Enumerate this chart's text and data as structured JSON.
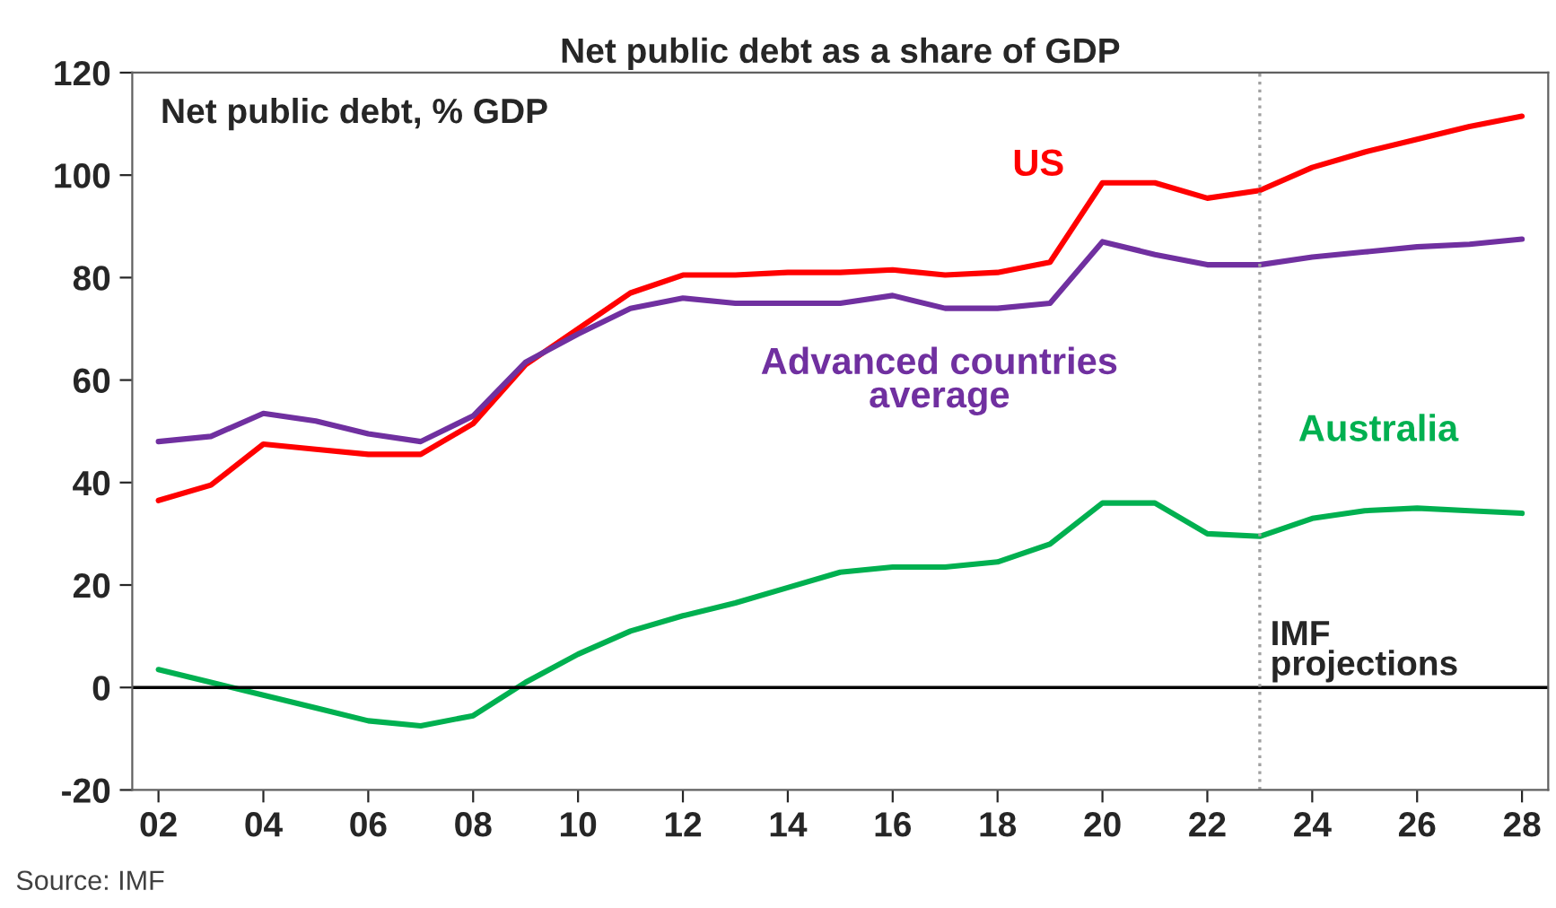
{
  "chart_data": {
    "type": "line",
    "title": "Net public debt as a share of GDP",
    "ylabel": "Net public debt, % GDP",
    "x": [
      2002,
      2003,
      2004,
      2005,
      2006,
      2007,
      2008,
      2009,
      2010,
      2011,
      2012,
      2013,
      2014,
      2015,
      2016,
      2017,
      2018,
      2019,
      2020,
      2021,
      2022,
      2023,
      2024,
      2025,
      2026,
      2027,
      2028
    ],
    "series": [
      {
        "name": "US",
        "color": "#ff0000",
        "values": [
          36.5,
          39.5,
          47.5,
          46.5,
          45.5,
          45.5,
          51.5,
          63,
          70,
          77,
          80.5,
          80.5,
          81,
          81,
          81.5,
          80.5,
          81,
          83,
          98.5,
          98.5,
          95.5,
          97,
          101.5,
          104.5,
          107,
          109.5,
          111.5
        ]
      },
      {
        "name": "Advanced countries average",
        "color": "#7030a0",
        "values": [
          48,
          49,
          53.5,
          52,
          49.5,
          48,
          53,
          63.5,
          69,
          74,
          76,
          75,
          75,
          75,
          76.5,
          74,
          74,
          75,
          87,
          84.5,
          82.5,
          82.5,
          84,
          85,
          86,
          86.5,
          87.5
        ]
      },
      {
        "name": "Australia",
        "color": "#00b050",
        "values": [
          3.5,
          1,
          -1.5,
          -4,
          -6.5,
          -7.5,
          -5.5,
          1,
          6.5,
          11,
          14,
          16.5,
          19.5,
          22.5,
          23.5,
          23.5,
          24.5,
          28,
          36,
          36,
          30,
          29.5,
          33,
          34.5,
          35,
          34.5,
          34
        ]
      }
    ],
    "xlim": [
      2001.5,
      2028.5
    ],
    "xticks": [
      {
        "value": 2002,
        "label": "02"
      },
      {
        "value": 2004,
        "label": "04"
      },
      {
        "value": 2006,
        "label": "06"
      },
      {
        "value": 2008,
        "label": "08"
      },
      {
        "value": 2010,
        "label": "10"
      },
      {
        "value": 2012,
        "label": "12"
      },
      {
        "value": 2014,
        "label": "14"
      },
      {
        "value": 2016,
        "label": "16"
      },
      {
        "value": 2018,
        "label": "18"
      },
      {
        "value": 2020,
        "label": "20"
      },
      {
        "value": 2022,
        "label": "22"
      },
      {
        "value": 2024,
        "label": "24"
      },
      {
        "value": 2026,
        "label": "26"
      },
      {
        "value": 2028,
        "label": "28"
      }
    ],
    "ylim": [
      -20,
      120
    ],
    "yticks": [
      -20,
      0,
      20,
      40,
      60,
      80,
      100,
      120
    ],
    "ref_lines": [
      {
        "axis": "y",
        "value": 0,
        "color": "#000000",
        "line_style": "solid"
      },
      {
        "axis": "x",
        "value": 2023,
        "label": "IMF projections",
        "color": "#a0a0a0",
        "line_style": "dotted"
      }
    ],
    "annotations": [
      "Source: IMF"
    ],
    "grid": false,
    "legend": false,
    "line_style": "solid",
    "marker": "none"
  }
}
